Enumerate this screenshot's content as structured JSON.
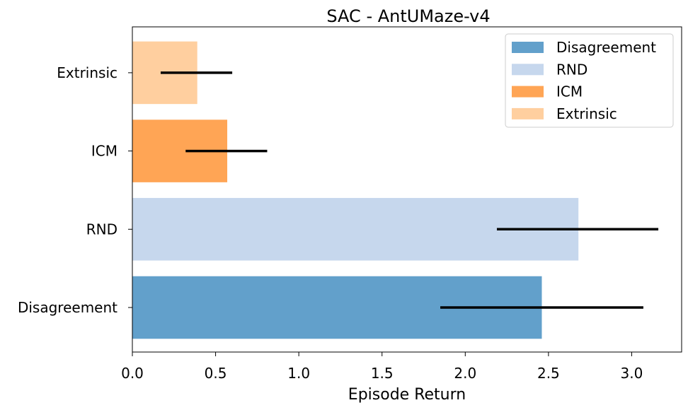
{
  "chart_data": {
    "type": "bar",
    "orientation": "horizontal",
    "title": "SAC - AntUMaze-v4",
    "xlabel": "Episode Return",
    "ylabel": "",
    "xlim": [
      0,
      3.3
    ],
    "grid": false,
    "legend_position": "top-right",
    "categories": [
      "Disagreement",
      "RND",
      "ICM",
      "Extrinsic"
    ],
    "values": [
      2.46,
      2.68,
      0.57,
      0.39
    ],
    "error_low": [
      1.85,
      2.19,
      0.32,
      0.17
    ],
    "error_high": [
      3.07,
      3.16,
      0.81,
      0.6
    ],
    "colors": [
      "#62a0cb",
      "#c6d7ed",
      "#ffa555",
      "#ffcf9f"
    ],
    "error_color": "#000000",
    "xticks": [
      0.0,
      0.5,
      1.0,
      1.5,
      2.0,
      2.5,
      3.0
    ],
    "xtick_labels": [
      "0.0",
      "0.5",
      "1.0",
      "1.5",
      "2.0",
      "2.5",
      "3.0"
    ],
    "legend": [
      "Disagreement",
      "RND",
      "ICM",
      "Extrinsic"
    ]
  }
}
